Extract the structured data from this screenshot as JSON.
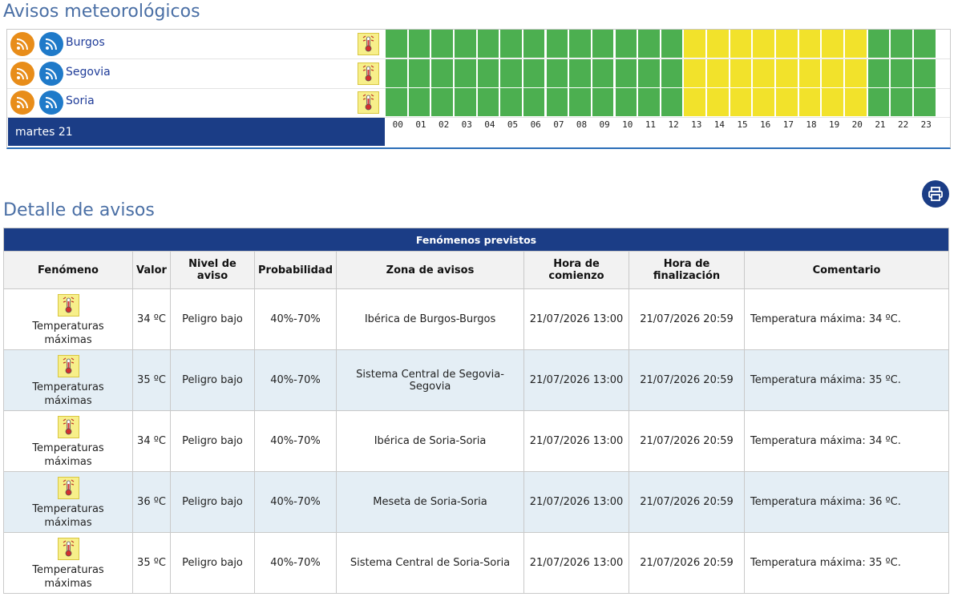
{
  "title": "Avisos meteorológicos",
  "timeline": {
    "day_label": "martes 21",
    "hours": [
      "00",
      "01",
      "02",
      "03",
      "04",
      "05",
      "06",
      "07",
      "08",
      "09",
      "10",
      "11",
      "12",
      "13",
      "14",
      "15",
      "16",
      "17",
      "18",
      "19",
      "20",
      "21",
      "22",
      "23"
    ],
    "colors": {
      "green": "#4caf50",
      "yellow": "#f2e22b"
    },
    "warning_hours": [
      "13",
      "14",
      "15",
      "16",
      "17",
      "18",
      "19",
      "20"
    ],
    "regions": [
      {
        "name": "Burgos"
      },
      {
        "name": "Segovia"
      },
      {
        "name": "Soria"
      }
    ]
  },
  "detail": {
    "title": "Detalle de avisos",
    "caption": "Fenómenos previstos",
    "headers": {
      "fenomeno": "Fenómeno",
      "valor": "Valor",
      "nivel": "Nivel de aviso",
      "probabilidad": "Probabilidad",
      "zona": "Zona de avisos",
      "comienzo": "Hora de comienzo",
      "finalizacion": "Hora de finalización",
      "comentario": "Comentario"
    },
    "rows": [
      {
        "fenomeno": "Temperaturas máximas",
        "valor": "34 ºC",
        "nivel": "Peligro bajo",
        "probabilidad": "40%-70%",
        "zona": "Ibérica de Burgos-Burgos",
        "comienzo": "21/07/2026 13:00",
        "fin": "21/07/2026 20:59",
        "comentario": "Temperatura máxima: 34 ºC."
      },
      {
        "fenomeno": "Temperaturas máximas",
        "valor": "35 ºC",
        "nivel": "Peligro bajo",
        "probabilidad": "40%-70%",
        "zona": "Sistema Central de Segovia-Segovia",
        "comienzo": "21/07/2026 13:00",
        "fin": "21/07/2026 20:59",
        "comentario": "Temperatura máxima: 35 ºC."
      },
      {
        "fenomeno": "Temperaturas máximas",
        "valor": "34 ºC",
        "nivel": "Peligro bajo",
        "probabilidad": "40%-70%",
        "zona": "Ibérica de Soria-Soria",
        "comienzo": "21/07/2026 13:00",
        "fin": "21/07/2026 20:59",
        "comentario": "Temperatura máxima: 34 ºC."
      },
      {
        "fenomeno": "Temperaturas máximas",
        "valor": "36 ºC",
        "nivel": "Peligro bajo",
        "probabilidad": "40%-70%",
        "zona": "Meseta de Soria-Soria",
        "comienzo": "21/07/2026 13:00",
        "fin": "21/07/2026 20:59",
        "comentario": "Temperatura máxima: 36 ºC."
      },
      {
        "fenomeno": "Temperaturas máximas",
        "valor": "35 ºC",
        "nivel": "Peligro bajo",
        "probabilidad": "40%-70%",
        "zona": "Sistema Central de Soria-Soria",
        "comienzo": "21/07/2026 13:00",
        "fin": "21/07/2026 20:59",
        "comentario": "Temperatura máxima: 35 ºC."
      }
    ]
  }
}
